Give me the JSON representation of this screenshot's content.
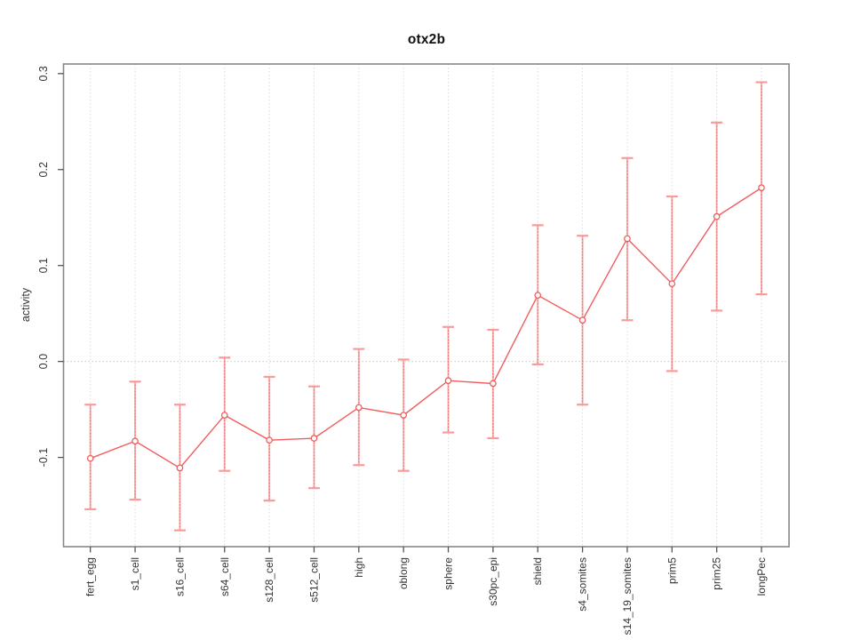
{
  "page": {
    "background": "#ffffff"
  },
  "chart_data": {
    "type": "line",
    "title": "otx2b",
    "xlabel": "",
    "ylabel": "activity",
    "legend": "none",
    "grid": "vertical dotted gridline at every category; horizontal dotted line at y=0",
    "categories": [
      "fert_egg",
      "s1_cell",
      "s16_cell",
      "s64_cell",
      "s128_cell",
      "s512_cell",
      "high",
      "oblong",
      "sphere",
      "s30pc_epi",
      "shield",
      "s4_somites",
      "s14_19_somites",
      "prim5",
      "prim25",
      "longPec"
    ],
    "series": [
      {
        "name": "activity",
        "marker": "open-circle",
        "values": [
          -0.101,
          -0.083,
          -0.111,
          -0.056,
          -0.082,
          -0.08,
          -0.048,
          -0.056,
          -0.02,
          -0.023,
          0.069,
          0.043,
          0.128,
          0.081,
          0.151,
          0.181
        ],
        "lower": [
          -0.154,
          -0.144,
          -0.176,
          -0.114,
          -0.145,
          -0.132,
          -0.108,
          -0.114,
          -0.074,
          -0.08,
          -0.003,
          -0.045,
          0.043,
          -0.01,
          0.053,
          0.07
        ],
        "upper": [
          -0.045,
          -0.021,
          -0.045,
          0.004,
          -0.016,
          -0.026,
          0.013,
          0.002,
          0.036,
          0.033,
          0.142,
          0.131,
          0.212,
          0.172,
          0.249,
          0.291
        ]
      }
    ],
    "ytick_values": [
      -0.1,
      0.0,
      0.1,
      0.2,
      0.3
    ],
    "ytick_labels": [
      "-0.1",
      "0.0",
      "0.1",
      "0.2",
      "0.3"
    ],
    "ylim": [
      -0.193,
      0.31
    ],
    "zero_line": 0.0,
    "colors": {
      "line": "#f25c5c",
      "point_stroke": "#f25c5c",
      "error_bar": "#f79b9b",
      "error_bar_core": "#ef5b5b",
      "grid": "#dcdcdc",
      "zero_line": "#c9c9c9",
      "box": "#878787",
      "tick": "#555555",
      "text": "#333333"
    }
  }
}
